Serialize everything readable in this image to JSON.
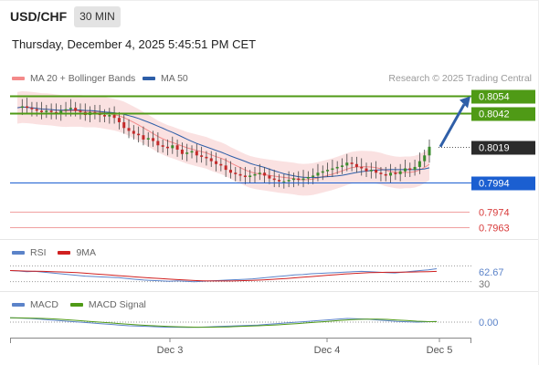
{
  "header": {
    "symbol": "USD/CHF",
    "timeframe": "30 MIN",
    "timestamp": "Thursday, December 4, 2025 5:45:51 PM CET",
    "credit": "Research © 2025 Trading Central"
  },
  "legend": {
    "ma20": {
      "label": "MA 20 + Bollinger Bands",
      "color": "#f48a8a"
    },
    "ma50": {
      "label": "MA 50",
      "color": "#2d5ea8"
    }
  },
  "chart_data": {
    "type": "candlestick",
    "symbol": "USD/CHF",
    "timeframe": "30 MIN",
    "x_ticks": [
      "Dec 3",
      "Dec 4",
      "Dec 5"
    ],
    "price_ylim": [
      0.7955,
      0.806
    ],
    "current_price": 0.8019,
    "levels": [
      {
        "value": 0.8054,
        "label": "0.8054",
        "kind": "resistance",
        "color": "#4f9a16"
      },
      {
        "value": 0.8042,
        "label": "0.8042",
        "kind": "resistance",
        "color": "#4f9a16"
      },
      {
        "value": 0.7994,
        "label": "0.7994",
        "kind": "pivot",
        "color": "#1b5fd1"
      },
      {
        "value": 0.7974,
        "label": "0.7974",
        "kind": "support",
        "color": "#e05a5a"
      },
      {
        "value": 0.7963,
        "label": "0.7963",
        "kind": "support",
        "color": "#e05a5a"
      }
    ],
    "price_series": [
      0.8046,
      0.8047,
      0.8046,
      0.8045,
      0.8044,
      0.8043,
      0.8044,
      0.8043,
      0.8042,
      0.8044,
      0.8045,
      0.8046,
      0.8044,
      0.8043,
      0.8041,
      0.8043,
      0.8042,
      0.8041,
      0.804,
      0.8041,
      0.8039,
      0.8036,
      0.8032,
      0.803,
      0.8028,
      0.8027,
      0.8024,
      0.8025,
      0.8023,
      0.802,
      0.8019,
      0.8018,
      0.802,
      0.8017,
      0.8014,
      0.8015,
      0.8016,
      0.8013,
      0.8012,
      0.8011,
      0.8009,
      0.8007,
      0.8006,
      0.8003,
      0.8001,
      0.8,
      0.7999,
      0.7998,
      0.7999,
      0.8,
      0.8001,
      0.7999,
      0.7997,
      0.7996,
      0.7995,
      0.7995,
      0.7996,
      0.7997,
      0.7996,
      0.7997,
      0.7998,
      0.7999,
      0.8001,
      0.8002,
      0.8003,
      0.8004,
      0.8005,
      0.8006,
      0.8008,
      0.8007,
      0.8005,
      0.8004,
      0.8002,
      0.8003,
      0.8001,
      0.8,
      0.7999,
      0.8001,
      0.8,
      0.8002,
      0.8004,
      0.8003,
      0.8005,
      0.8009,
      0.8013,
      0.8019
    ],
    "forecast_arrow": {
      "from": 0.8019,
      "to": 0.8054
    },
    "rsi": {
      "label": "RSI",
      "ma_label": "9MA",
      "color": "#5b83c9",
      "ma_color": "#d02020",
      "value_label": "62.67",
      "level_label": "30",
      "levels": [
        70,
        30
      ],
      "series": [
        58,
        57,
        55,
        56,
        54,
        52,
        50,
        48,
        46,
        44,
        43,
        42,
        41,
        40,
        38,
        36,
        34,
        33,
        32,
        31,
        32,
        31,
        30,
        31,
        32,
        33,
        34,
        35,
        36,
        37,
        39,
        41,
        43,
        45,
        47,
        48,
        50,
        51,
        52,
        53,
        54,
        55,
        56,
        55,
        54,
        53,
        52,
        54,
        56,
        58,
        60,
        62.67
      ]
    },
    "macd": {
      "label": "MACD",
      "signal_label": "MACD Signal",
      "color": "#5b83c9",
      "signal_color": "#4f9a16",
      "value_label": "0.00",
      "series": [
        0.6,
        0.55,
        0.5,
        0.4,
        0.3,
        0.2,
        0.1,
        0.0,
        -0.1,
        -0.2,
        -0.3,
        -0.4,
        -0.5,
        -0.55,
        -0.6,
        -0.65,
        -0.7,
        -0.7,
        -0.72,
        -0.7,
        -0.65,
        -0.6,
        -0.55,
        -0.5,
        -0.45,
        -0.4,
        -0.3,
        -0.2,
        -0.1,
        0.0,
        0.1,
        0.2,
        0.3,
        0.4,
        0.5,
        0.45,
        0.4,
        0.3,
        0.2,
        0.1,
        0.05,
        0.0,
        0.05,
        0.1
      ]
    }
  }
}
